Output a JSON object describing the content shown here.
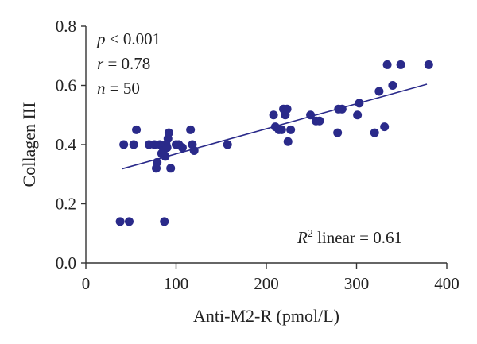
{
  "chart_data": {
    "type": "scatter",
    "xlabel": "Anti-M2-R (pmol/L)",
    "ylabel": "Collagen III",
    "xlim": [
      0,
      400
    ],
    "ylim": [
      0.0,
      0.8
    ],
    "x_ticks": [
      "0",
      "100",
      "200",
      "300",
      "400"
    ],
    "y_ticks": [
      "0.0",
      "0.2",
      "0.4",
      "0.6",
      "0.8"
    ],
    "grid": false,
    "marker_color": "#2a2a8a",
    "line_color": "#2a2a8a",
    "annotations": {
      "p_var": "p",
      "p_text": " < 0.001",
      "r_var": "r",
      "r_text": " = 0.78",
      "n_var": "n",
      "n_text": " = 50",
      "r2_var": "R",
      "r2_sup": "2",
      "r2_text": " linear = 0.61"
    },
    "points": [
      [
        38,
        0.14
      ],
      [
        42,
        0.4
      ],
      [
        48,
        0.14
      ],
      [
        53,
        0.4
      ],
      [
        56,
        0.45
      ],
      [
        70,
        0.4
      ],
      [
        76,
        0.4
      ],
      [
        78,
        0.32
      ],
      [
        79,
        0.34
      ],
      [
        82,
        0.4
      ],
      [
        84,
        0.37
      ],
      [
        86,
        0.38
      ],
      [
        87,
        0.14
      ],
      [
        88,
        0.36
      ],
      [
        89,
        0.4
      ],
      [
        90,
        0.39
      ],
      [
        91,
        0.42
      ],
      [
        92,
        0.44
      ],
      [
        94,
        0.32
      ],
      [
        100,
        0.4
      ],
      [
        103,
        0.4
      ],
      [
        107,
        0.39
      ],
      [
        116,
        0.45
      ],
      [
        118,
        0.4
      ],
      [
        120,
        0.38
      ],
      [
        157,
        0.4
      ],
      [
        208,
        0.5
      ],
      [
        210,
        0.46
      ],
      [
        214,
        0.45
      ],
      [
        217,
        0.45
      ],
      [
        219,
        0.52
      ],
      [
        221,
        0.5
      ],
      [
        223,
        0.52
      ],
      [
        224,
        0.41
      ],
      [
        227,
        0.45
      ],
      [
        249,
        0.5
      ],
      [
        255,
        0.48
      ],
      [
        259,
        0.48
      ],
      [
        279,
        0.44
      ],
      [
        280,
        0.52
      ],
      [
        284,
        0.52
      ],
      [
        301,
        0.5
      ],
      [
        303,
        0.54
      ],
      [
        320,
        0.44
      ],
      [
        325,
        0.58
      ],
      [
        331,
        0.46
      ],
      [
        334,
        0.67
      ],
      [
        340,
        0.6
      ],
      [
        349,
        0.67
      ],
      [
        380,
        0.67
      ]
    ],
    "fit_line": {
      "x": [
        40,
        378
      ],
      "y": [
        0.318,
        0.604
      ]
    }
  }
}
